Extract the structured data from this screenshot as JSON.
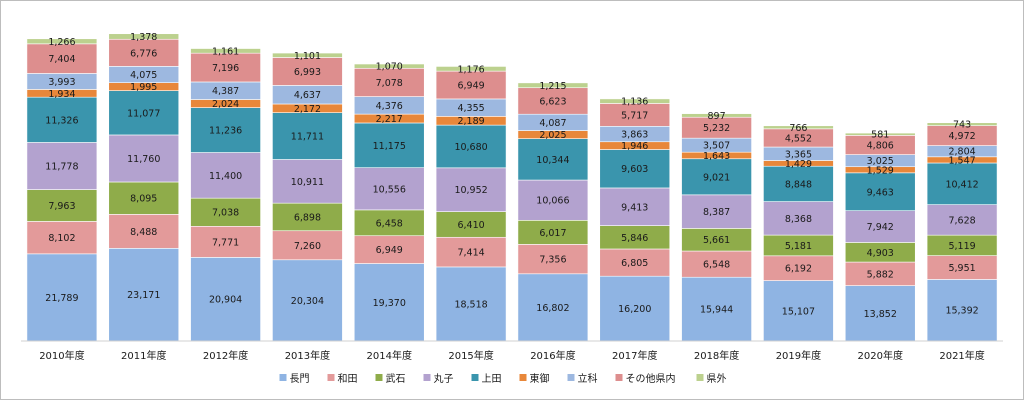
{
  "chart_data": {
    "type": "bar",
    "stacked": true,
    "title": "",
    "xlabel": "",
    "ylabel": "",
    "ylim": [
      0,
      75000
    ],
    "grid": false,
    "legend_position": "bottom",
    "categories": [
      "2010年度",
      "2011年度",
      "2012年度",
      "2013年度",
      "2014年度",
      "2015年度",
      "2016年度",
      "2017年度",
      "2018年度",
      "2019年度",
      "2020年度",
      "2021年度"
    ],
    "series": [
      {
        "name": "長門",
        "color": "#8fb4e3",
        "values": [
          21789,
          23171,
          20904,
          20304,
          19370,
          18518,
          16802,
          16200,
          15944,
          15107,
          13852,
          15392
        ]
      },
      {
        "name": "和田",
        "color": "#e39a9a",
        "values": [
          8102,
          8488,
          7771,
          7260,
          6949,
          7414,
          7356,
          6805,
          6548,
          6192,
          5882,
          5951
        ]
      },
      {
        "name": "武石",
        "color": "#8fac4a",
        "values": [
          7963,
          8095,
          7038,
          6898,
          6458,
          6410,
          6017,
          5846,
          5661,
          5181,
          4903,
          5119
        ]
      },
      {
        "name": "丸子",
        "color": "#b3a2cf",
        "values": [
          11778,
          11760,
          11400,
          10911,
          10556,
          10952,
          10066,
          9413,
          8387,
          8368,
          7942,
          7628
        ]
      },
      {
        "name": "上田",
        "color": "#3a95ad",
        "values": [
          11326,
          11077,
          11236,
          11711,
          11175,
          10680,
          10344,
          9603,
          9021,
          8848,
          9463,
          10412
        ]
      },
      {
        "name": "東御",
        "color": "#e8873a",
        "values": [
          1934,
          1995,
          2024,
          2172,
          2217,
          2189,
          2025,
          1946,
          1643,
          1429,
          1529,
          1547
        ]
      },
      {
        "name": "立科",
        "color": "#9db8e0",
        "values": [
          3993,
          4075,
          4387,
          4637,
          4376,
          4355,
          4087,
          3863,
          3507,
          3365,
          3025,
          2804
        ]
      },
      {
        "name": "その他県内",
        "color": "#dd8e8e",
        "values": [
          7404,
          6776,
          7196,
          6993,
          7078,
          6949,
          6623,
          5717,
          5232,
          4552,
          4806,
          4972
        ]
      },
      {
        "name": "県外",
        "color": "#bcd18e",
        "values": [
          1266,
          1378,
          1161,
          1101,
          1070,
          1176,
          1215,
          1136,
          897,
          766,
          581,
          743
        ]
      }
    ]
  }
}
